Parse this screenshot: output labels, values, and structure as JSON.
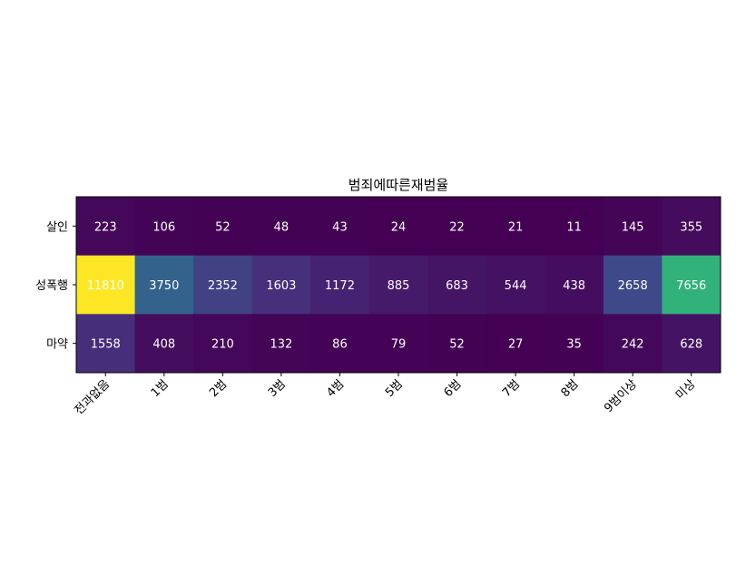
{
  "chart_data": {
    "type": "heatmap",
    "title": "범죄에따른재범율",
    "xlabel": "",
    "ylabel": "",
    "x_categories": [
      "전과없음",
      "1범",
      "2범",
      "3범",
      "4범",
      "5범",
      "6범",
      "7범",
      "8범",
      "9범이상",
      "미상"
    ],
    "y_categories": [
      "살인",
      "성폭행",
      "마약"
    ],
    "values": [
      [
        223,
        106,
        52,
        48,
        43,
        24,
        22,
        21,
        11,
        145,
        355
      ],
      [
        11810,
        3750,
        2352,
        1603,
        1172,
        885,
        683,
        544,
        438,
        2658,
        7656
      ],
      [
        1558,
        408,
        210,
        132,
        86,
        79,
        52,
        27,
        35,
        242,
        628
      ]
    ],
    "colormap": "viridis",
    "value_range": [
      11,
      11810
    ],
    "cell_label_color": "#ffffff",
    "grid": false,
    "legend": "none"
  }
}
